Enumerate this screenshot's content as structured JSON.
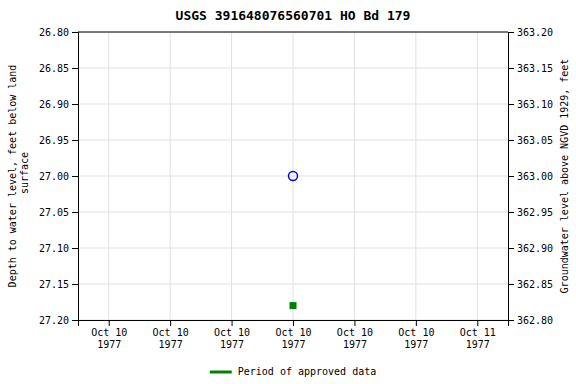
{
  "chart_data": {
    "type": "scatter",
    "title": "USGS 391648076560701 HO Bd 179",
    "y_label": "Depth to water level, feet below land\n surface",
    "y2_label": "Groundwater level above NGVD 1929, feet",
    "categories": [
      "Oct 10\n1977",
      "Oct 10\n1977",
      "Oct 10\n1977",
      "Oct 10\n1977",
      "Oct 10\n1977",
      "Oct 10\n1977",
      "Oct 11\n1977"
    ],
    "ylim": [
      27.2,
      26.8
    ],
    "yticks": [
      {
        "value": 26.8,
        "label": "26.80"
      },
      {
        "value": 26.85,
        "label": "26.85"
      },
      {
        "value": 26.9,
        "label": "26.90"
      },
      {
        "value": 26.95,
        "label": "26.95"
      },
      {
        "value": 27.0,
        "label": "27.00"
      },
      {
        "value": 27.05,
        "label": "27.05"
      },
      {
        "value": 27.1,
        "label": "27.10"
      },
      {
        "value": 27.15,
        "label": "27.15"
      },
      {
        "value": 27.2,
        "label": "27.20"
      }
    ],
    "y2lim": [
      362.8,
      363.2
    ],
    "y2ticks": [
      {
        "value": 363.2,
        "label": "363.20"
      },
      {
        "value": 363.15,
        "label": "363.15"
      },
      {
        "value": 363.1,
        "label": "363.10"
      },
      {
        "value": 363.05,
        "label": "363.05"
      },
      {
        "value": 363.0,
        "label": "363.00"
      },
      {
        "value": 362.95,
        "label": "362.95"
      },
      {
        "value": 362.9,
        "label": "362.90"
      },
      {
        "value": 362.85,
        "label": "362.85"
      },
      {
        "value": 362.8,
        "label": "362.80"
      }
    ],
    "grid": true,
    "legend": "bottom",
    "series": [
      {
        "color": "blue",
        "marker": "circle-open",
        "values": [
          null,
          null,
          null,
          27.0,
          null,
          null,
          null
        ]
      },
      {
        "name": "Period of approved data",
        "color": "green",
        "marker": "square",
        "values": [
          null,
          null,
          null,
          27.18,
          null,
          null,
          null
        ]
      }
    ]
  }
}
